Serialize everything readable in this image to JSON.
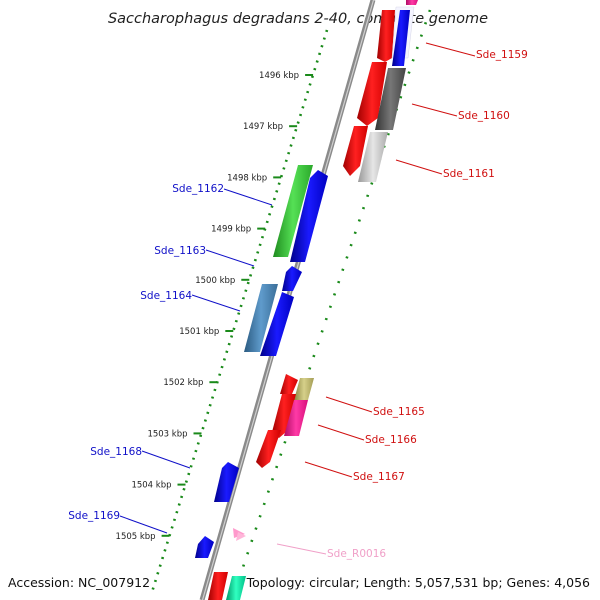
{
  "title": "Saccharophagus degradans 2-40, complete genome",
  "footer": {
    "accession": "Accession: NC_007912",
    "summary": "Topology: circular; Length: 5,057,531 bp; Genes: 4,056"
  },
  "ticks": [
    "1496 kbp",
    "1497 kbp",
    "1498 kbp",
    "1499 kbp",
    "1500 kbp",
    "1501 kbp",
    "1502 kbp",
    "1503 kbp",
    "1504 kbp",
    "1505 kbp"
  ],
  "genes_left": [
    {
      "label": "Sde_1162",
      "color": "#1010c8"
    },
    {
      "label": "Sde_1163",
      "color": "#1010c8"
    },
    {
      "label": "Sde_1164",
      "color": "#1010c8"
    },
    {
      "label": "Sde_1168",
      "color": "#1010c8"
    },
    {
      "label": "Sde_1169",
      "color": "#1010c8"
    }
  ],
  "genes_right": [
    {
      "label": "Sde_1159",
      "color": "#d01010"
    },
    {
      "label": "Sde_1160",
      "color": "#d01010"
    },
    {
      "label": "Sde_1161",
      "color": "#d01010"
    },
    {
      "label": "Sde_1165",
      "color": "#d01010"
    },
    {
      "label": "Sde_1166",
      "color": "#d01010"
    },
    {
      "label": "Sde_1167",
      "color": "#d01010"
    },
    {
      "label": "Sde_R0016",
      "color": "#f0a0c8"
    }
  ],
  "colors": {
    "backbone": "#8a8a8a",
    "dotted_track": "#1a8a1a",
    "forward_red": "#ff0000",
    "reverse_blue": "#0000ff",
    "green_feature": "#33cc33",
    "steel_feature": "#4682b4",
    "dark_gray": "#555555",
    "light_gray": "#c0c0c0",
    "khaki": "#bdb76b",
    "magenta": "#ff1493",
    "teal": "#00e0a0",
    "pink_rna": "#ff99cc"
  }
}
